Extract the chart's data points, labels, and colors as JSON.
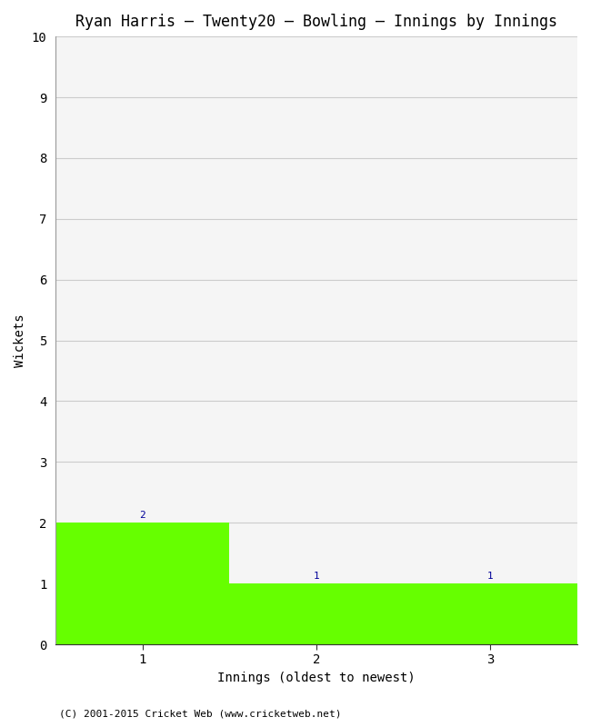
{
  "title": "Ryan Harris – Twenty20 – Bowling – Innings by Innings",
  "xlabel": "Innings (oldest to newest)",
  "ylabel": "Wickets",
  "categories": [
    1,
    2,
    3
  ],
  "values": [
    2,
    1,
    1
  ],
  "bar_color": "#66ff00",
  "bar_edgecolor": "#66ff00",
  "ylim": [
    0,
    10
  ],
  "yticks": [
    0,
    1,
    2,
    3,
    4,
    5,
    6,
    7,
    8,
    9,
    10
  ],
  "xticks": [
    1,
    2,
    3
  ],
  "label_color": "#000099",
  "background_color": "#ffffff",
  "plot_bg_color": "#f5f5f5",
  "footer": "(C) 2001-2015 Cricket Web (www.cricketweb.net)",
  "title_fontsize": 12,
  "axis_fontsize": 10,
  "tick_fontsize": 10,
  "label_fontsize": 8,
  "footer_fontsize": 8,
  "xlim": [
    0.5,
    3.5
  ]
}
